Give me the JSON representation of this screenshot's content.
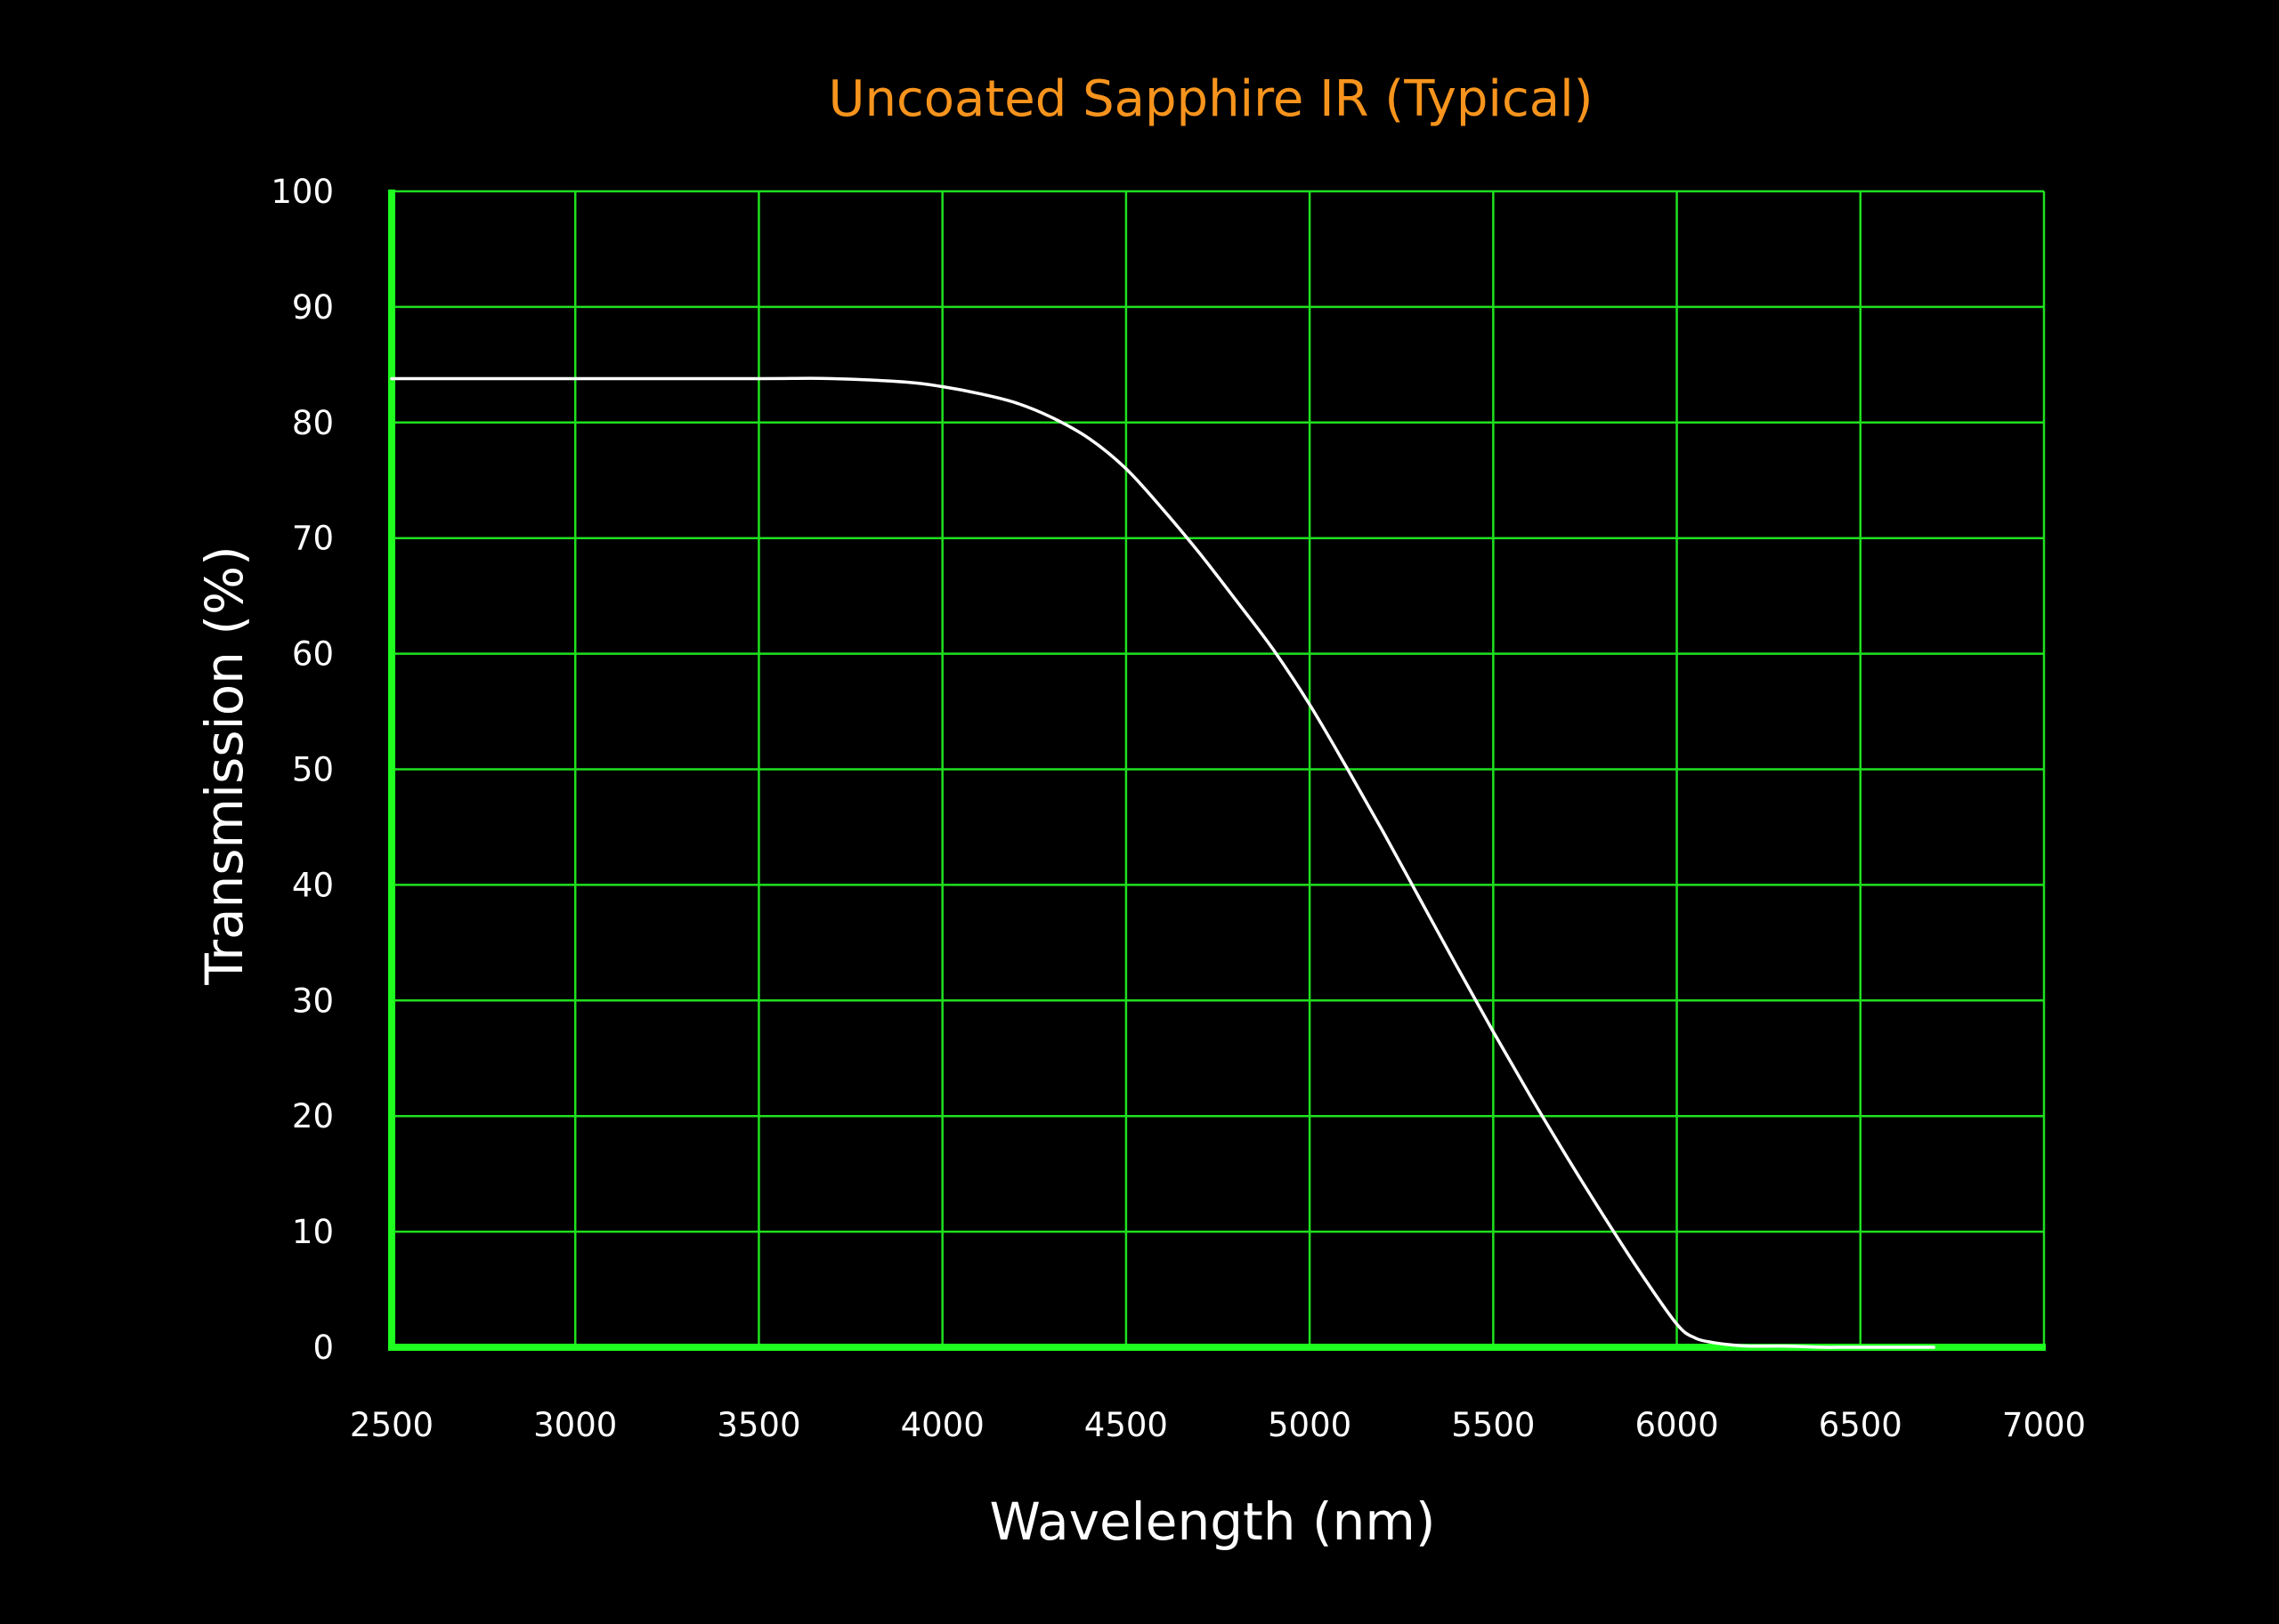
{
  "chart_data": {
    "type": "line",
    "title": "Uncoated Sapphire IR (Typical)",
    "xlabel": "Wavelength (nm)",
    "ylabel": "Transmission (%)",
    "xlim": [
      2500,
      7000
    ],
    "ylim": [
      0,
      100
    ],
    "x_ticks": [
      2500,
      3000,
      3500,
      4000,
      4500,
      5000,
      5500,
      6000,
      6500,
      7000
    ],
    "y_ticks": [
      0,
      10,
      20,
      30,
      40,
      50,
      60,
      70,
      80,
      90,
      100
    ],
    "x_tick_labels": [
      "2500",
      "3000",
      "3500",
      "4000",
      "4500",
      "5000",
      "5500",
      "6000",
      "6500",
      "7000"
    ],
    "y_tick_labels": [
      "0",
      "10",
      "20",
      "30",
      "40",
      "50",
      "60",
      "70",
      "80",
      "90",
      "100"
    ],
    "grid": true,
    "legend": "none",
    "series": [
      {
        "x": [
          2500,
          3000,
          3500,
          3700,
          3900,
          4000,
          4100,
          4200,
          4300,
          4400,
          4500,
          4600,
          4700,
          4800,
          4900,
          5000,
          5100,
          5200,
          5300,
          5400,
          5500,
          5600,
          5700,
          5800,
          5900,
          6000,
          6050,
          6100,
          6150,
          6200,
          6300,
          6400,
          6450,
          6500,
          6550,
          6600,
          6700
        ],
        "y": [
          83.8,
          83.8,
          83.8,
          83.8,
          83.5,
          83.1,
          82.5,
          81.7,
          80.4,
          78.6,
          76.0,
          72.5,
          68.7,
          64.6,
          60.4,
          55.6,
          50.2,
          44.6,
          38.8,
          33.0,
          27.3,
          21.8,
          16.5,
          11.4,
          6.5,
          2.0,
          0.8,
          0.4,
          0.2,
          0.1,
          0.1,
          0.0,
          0.0,
          0.0,
          0.0,
          0.0,
          0.0
        ]
      }
    ],
    "colors": {
      "background": "#000000",
      "title": "#f7941d",
      "grid": "#1fe01f",
      "axis": "#1fff1f",
      "line": "#ffffff",
      "text": "#ffffff"
    }
  }
}
